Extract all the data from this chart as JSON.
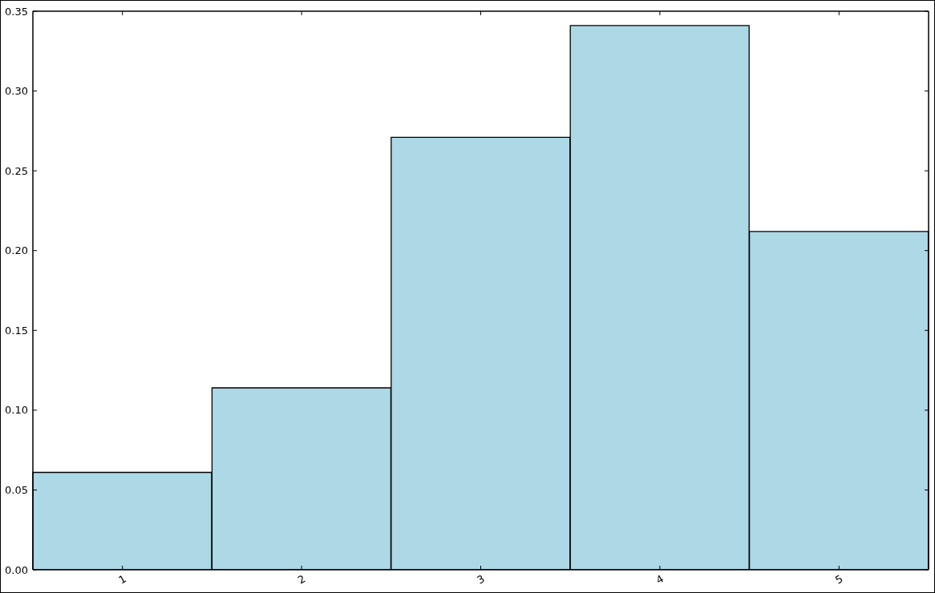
{
  "chart_data": {
    "type": "bar",
    "categories": [
      "1",
      "2",
      "3",
      "4",
      "5"
    ],
    "values": [
      0.061,
      0.114,
      0.271,
      0.341,
      0.212
    ],
    "color": "#add8e6",
    "ylim": [
      0,
      0.35
    ],
    "yticks": [
      {
        "value": 0,
        "label": "0.00"
      },
      {
        "value": 0.05,
        "label": "0.05"
      },
      {
        "value": 0.1,
        "label": "0.10"
      },
      {
        "value": 0.15,
        "label": "0.15"
      },
      {
        "value": 0.2,
        "label": "0.20"
      },
      {
        "value": 0.25,
        "label": "0.25"
      },
      {
        "value": 0.3,
        "label": "0.30"
      },
      {
        "value": 0.35,
        "label": "0.35"
      }
    ]
  }
}
